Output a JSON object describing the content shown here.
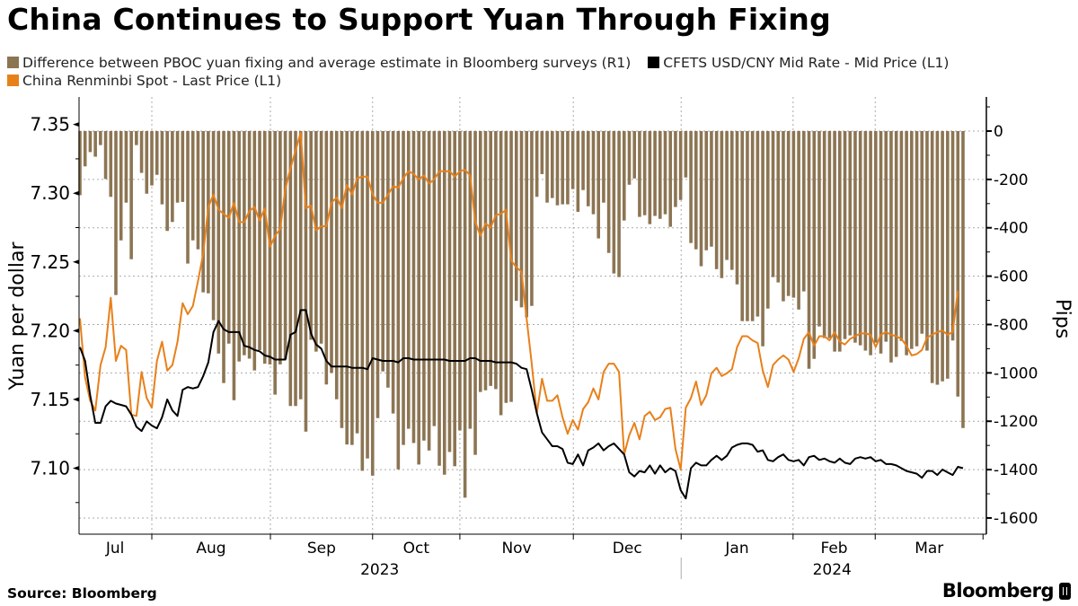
{
  "title": "China Continues to Support Yuan Through Fixing",
  "legend": [
    {
      "label": "Difference between PBOC yuan fixing and average estimate in Bloomberg surveys (R1)",
      "color": "#8c7553"
    },
    {
      "label": "CFETS USD/CNY Mid Rate - Mid Price (L1)",
      "color": "#000000"
    },
    {
      "label": "China Renminbi Spot - Last Price (L1)",
      "color": "#e8801a"
    }
  ],
  "footer": {
    "source": "Source: Bloomberg",
    "logo": "Bloomberg"
  },
  "chart_data": {
    "type": "bar+line",
    "title": "China Continues to Support Yuan Through Fixing",
    "ylabel_left": "Yuan per dollar",
    "ylabel_right": "Pips",
    "ylim_left": [
      7.052,
      7.37
    ],
    "ylim_right": [
      -1667,
      141
    ],
    "left_ticks": [
      "7.10",
      "7.15",
      "7.20",
      "7.25",
      "7.30",
      "7.35"
    ],
    "right_ticks": [
      "0",
      "-200",
      "-400",
      "-600",
      "-800",
      "-1000",
      "-1200",
      "-1400",
      "-1600"
    ],
    "grid": true,
    "x_unit": "trading day index",
    "x_range": [
      -0.3,
      175.9
    ],
    "months": [
      {
        "label": "Jul",
        "start": -0.3
      },
      {
        "label": "Aug",
        "start": 14.0
      },
      {
        "label": "Sep",
        "start": 37.1
      },
      {
        "label": "Oct",
        "start": 57.0
      },
      {
        "label": "Nov",
        "start": 74.0
      },
      {
        "label": "Dec",
        "start": 96.1
      },
      {
        "label": "Jan",
        "start": 117.1
      },
      {
        "label": "Feb",
        "start": 138.9
      },
      {
        "label": "Mar",
        "start": 154.9
      }
    ],
    "years": [
      {
        "label": "2023",
        "start": -0.3,
        "end": 117.1
      },
      {
        "label": "2024",
        "start": 117.1,
        "end": 175.9
      }
    ],
    "series": [
      {
        "name": "Difference between PBOC yuan fixing and average estimate in Bloomberg surveys (R1)",
        "kind": "bar",
        "axis": "right",
        "color": "#8c7553",
        "values": [
          -265,
          -146,
          -87,
          -106,
          -58,
          -198,
          -272,
          -678,
          -452,
          -296,
          -530,
          -58,
          -173,
          -259,
          -225,
          -181,
          -303,
          -413,
          -376,
          -296,
          -293,
          -548,
          -452,
          -489,
          -667,
          -671,
          -782,
          -920,
          -1042,
          -879,
          -1113,
          -953,
          -927,
          -941,
          -990,
          -906,
          -962,
          -965,
          -1090,
          -965,
          -943,
          -1137,
          -1137,
          -1109,
          -1243,
          -863,
          -912,
          -879,
          -1048,
          -1000,
          -1109,
          -1228,
          -1296,
          -1298,
          -1250,
          -1405,
          -1354,
          -1425,
          -1187,
          -994,
          -1061,
          -1168,
          -1399,
          -1298,
          -1231,
          -1290,
          -1379,
          -1280,
          -1321,
          -1220,
          -1384,
          -1421,
          -1327,
          -1386,
          -1238,
          -1516,
          -1231,
          -1339,
          -1079,
          -1072,
          -1054,
          -1067,
          -1175,
          -1124,
          -1120,
          -702,
          -729,
          -770,
          -723,
          -272,
          -178,
          -296,
          -277,
          -307,
          -303,
          -303,
          -240,
          -334,
          -244,
          -311,
          -344,
          -444,
          -296,
          -504,
          -589,
          -604,
          -370,
          -222,
          -196,
          -355,
          -348,
          -385,
          -351,
          -363,
          -344,
          -396,
          -314,
          -285,
          -192,
          -463,
          -489,
          -559,
          -493,
          -478,
          -571,
          -608,
          -533,
          -574,
          -634,
          -786,
          -786,
          -786,
          -767,
          -890,
          -734,
          -604,
          -626,
          -704,
          -682,
          -689,
          -738,
          -663,
          -983,
          -942,
          -808,
          -856,
          -856,
          -912,
          -912,
          -860,
          -845,
          -875,
          -886,
          -908,
          -927,
          -875,
          -920,
          -871,
          -957,
          -934,
          -868,
          -927,
          -901,
          -890,
          -838,
          -908,
          -1042,
          -1049,
          -1035,
          -1024,
          -866,
          -1098,
          -1228
        ]
      },
      {
        "name": "CFETS USD/CNY Mid Rate - Mid Price (L1)",
        "kind": "line",
        "axis": "left",
        "color": "#000000",
        "values": [
          7.188,
          7.178,
          7.153,
          7.133,
          7.133,
          7.145,
          7.149,
          7.147,
          7.146,
          7.145,
          7.139,
          7.13,
          7.127,
          7.134,
          7.131,
          7.129,
          7.137,
          7.15,
          7.142,
          7.138,
          7.157,
          7.159,
          7.158,
          7.159,
          7.167,
          7.177,
          7.199,
          7.207,
          7.201,
          7.199,
          7.199,
          7.199,
          7.189,
          7.188,
          7.186,
          7.185,
          7.182,
          7.181,
          7.179,
          7.179,
          7.179,
          7.197,
          7.199,
          7.215,
          7.215,
          7.198,
          7.19,
          7.187,
          7.178,
          7.174,
          7.174,
          7.174,
          7.174,
          7.173,
          7.173,
          7.173,
          7.172,
          7.18,
          7.179,
          7.178,
          7.178,
          7.178,
          7.177,
          7.18,
          7.18,
          7.179,
          7.179,
          7.179,
          7.179,
          7.179,
          7.179,
          7.179,
          7.178,
          7.178,
          7.178,
          7.178,
          7.18,
          7.18,
          7.178,
          7.178,
          7.178,
          7.177,
          7.177,
          7.177,
          7.177,
          7.176,
          7.173,
          7.172,
          7.157,
          7.14,
          7.126,
          7.121,
          7.116,
          7.116,
          7.114,
          7.104,
          7.103,
          7.11,
          7.102,
          7.113,
          7.115,
          7.118,
          7.113,
          7.116,
          7.118,
          7.114,
          7.11,
          7.097,
          7.094,
          7.098,
          7.097,
          7.102,
          7.096,
          7.102,
          7.097,
          7.1,
          7.098,
          7.084,
          7.078,
          7.1,
          7.104,
          7.102,
          7.102,
          7.106,
          7.109,
          7.106,
          7.109,
          7.115,
          7.117,
          7.118,
          7.118,
          7.117,
          7.112,
          7.113,
          7.106,
          7.105,
          7.108,
          7.11,
          7.106,
          7.105,
          7.106,
          7.102,
          7.108,
          7.109,
          7.106,
          7.107,
          7.105,
          7.104,
          7.107,
          7.104,
          7.103,
          7.107,
          7.108,
          7.107,
          7.108,
          7.105,
          7.106,
          7.103,
          7.103,
          7.102,
          7.1,
          7.098,
          7.097,
          7.096,
          7.093,
          7.098,
          7.098,
          7.095,
          7.099,
          7.097,
          7.095,
          7.101,
          7.1
        ]
      },
      {
        "name": "China Renminbi Spot - Last Price (L1)",
        "kind": "line",
        "axis": "left",
        "color": "#e8801a",
        "values": [
          7.209,
          7.166,
          7.149,
          7.142,
          7.175,
          7.188,
          7.224,
          7.178,
          7.189,
          7.186,
          7.139,
          7.138,
          7.17,
          7.151,
          7.144,
          7.178,
          7.192,
          7.171,
          7.175,
          7.192,
          7.22,
          7.212,
          7.218,
          7.236,
          7.256,
          7.29,
          7.299,
          7.288,
          7.285,
          7.282,
          7.293,
          7.279,
          7.279,
          7.287,
          7.29,
          7.28,
          7.289,
          7.261,
          7.269,
          7.274,
          7.303,
          7.318,
          7.331,
          7.344,
          7.289,
          7.291,
          7.273,
          7.276,
          7.276,
          7.293,
          7.297,
          7.289,
          7.306,
          7.299,
          7.311,
          7.312,
          7.312,
          7.299,
          7.293,
          7.293,
          7.299,
          7.305,
          7.304,
          7.311,
          7.316,
          7.314,
          7.31,
          7.313,
          7.307,
          7.31,
          7.316,
          7.316,
          7.316,
          7.312,
          7.316,
          7.317,
          7.313,
          7.279,
          7.269,
          7.278,
          7.275,
          7.284,
          7.285,
          7.288,
          7.251,
          7.246,
          7.243,
          7.209,
          7.176,
          7.14,
          7.165,
          7.149,
          7.149,
          7.153,
          7.137,
          7.125,
          7.135,
          7.128,
          7.143,
          7.148,
          7.158,
          7.15,
          7.17,
          7.176,
          7.176,
          7.17,
          7.11,
          7.124,
          7.133,
          7.121,
          7.138,
          7.141,
          7.135,
          7.137,
          7.143,
          7.144,
          7.114,
          7.099,
          7.144,
          7.151,
          7.163,
          7.146,
          7.153,
          7.169,
          7.173,
          7.167,
          7.169,
          7.172,
          7.188,
          7.196,
          7.196,
          7.193,
          7.191,
          7.171,
          7.159,
          7.175,
          7.179,
          7.182,
          7.179,
          7.17,
          7.18,
          7.194,
          7.199,
          7.189,
          7.196,
          7.196,
          7.193,
          7.199,
          7.192,
          7.19,
          7.194,
          7.196,
          7.198,
          7.198,
          7.197,
          7.188,
          7.197,
          7.199,
          7.197,
          7.196,
          7.194,
          7.189,
          7.182,
          7.183,
          7.186,
          7.195,
          7.197,
          7.199,
          7.2,
          7.197,
          7.199,
          7.229
        ]
      }
    ]
  }
}
